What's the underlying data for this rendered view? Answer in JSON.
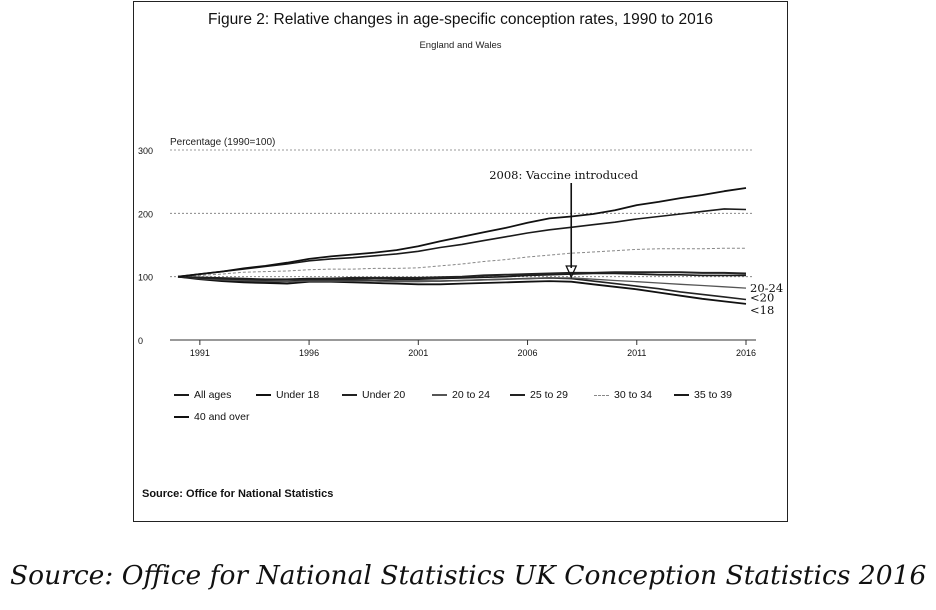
{
  "figure": {
    "title": "Figure 2: Relative changes in age-specific conception rates, 1990 to 2016",
    "subtitle": "England and Wales",
    "source_inner": "Source: Office for National Statistics"
  },
  "outer_caption": "Source: Office for National Statistics UK Conception Statistics 2016",
  "chart_data": {
    "type": "line",
    "title": "Figure 2: Relative changes in age-specific conception rates, 1990 to 2016",
    "subtitle": "England and Wales",
    "ylabel": "Percentage (1990=100)",
    "xlabel": "",
    "x": [
      1990,
      1991,
      1992,
      1993,
      1994,
      1995,
      1996,
      1997,
      1998,
      1999,
      2000,
      2001,
      2002,
      2003,
      2004,
      2005,
      2006,
      2007,
      2008,
      2009,
      2010,
      2011,
      2012,
      2013,
      2014,
      2015,
      2016
    ],
    "xticks": [
      1991,
      1996,
      2001,
      2006,
      2011,
      2016
    ],
    "xtick_labels": [
      "1991",
      "1996",
      "2001",
      "2006",
      "2011",
      "2016"
    ],
    "ylim": [
      0,
      300
    ],
    "yticks": [
      0,
      100,
      200,
      300
    ],
    "ytick_labels": [
      "0",
      "100",
      "200",
      "300"
    ],
    "grid": "dotted at 100, 200, 300",
    "annotation": {
      "text": "2008: Vaccine introduced",
      "x": 2008
    },
    "end_labels": [
      {
        "text": "20-24",
        "series": "20 to 24"
      },
      {
        "text": "<20",
        "series": "Under 20"
      },
      {
        "text": "<18",
        "series": "Under 18"
      }
    ],
    "series": [
      {
        "name": "All ages",
        "color": "#1a1a1a",
        "dash": "",
        "values": [
          100,
          99,
          98,
          97,
          96,
          96,
          97,
          97,
          97,
          97,
          96,
          96,
          97,
          98,
          99,
          100,
          102,
          103,
          104,
          105,
          105,
          104,
          103,
          103,
          102,
          102,
          102
        ]
      },
      {
        "name": "Under 18",
        "color": "#111111",
        "dash": "",
        "values": [
          100,
          96,
          93,
          91,
          90,
          89,
          92,
          92,
          91,
          90,
          89,
          88,
          88,
          89,
          90,
          91,
          92,
          93,
          92,
          88,
          84,
          80,
          75,
          70,
          65,
          61,
          57
        ]
      },
      {
        "name": "Under 20",
        "color": "#222222",
        "dash": "",
        "values": [
          100,
          97,
          95,
          93,
          92,
          92,
          94,
          95,
          95,
          94,
          93,
          93,
          93,
          94,
          95,
          96,
          97,
          98,
          97,
          93,
          89,
          85,
          81,
          76,
          72,
          68,
          64
        ]
      },
      {
        "name": "20 to 24",
        "color": "#555555",
        "dash": "",
        "values": [
          100,
          97,
          95,
          94,
          93,
          92,
          93,
          93,
          93,
          93,
          92,
          92,
          93,
          94,
          95,
          96,
          97,
          98,
          98,
          96,
          94,
          92,
          90,
          88,
          86,
          84,
          82
        ]
      },
      {
        "name": "25 to 29",
        "color": "#222222",
        "dash": "",
        "values": [
          100,
          98,
          97,
          96,
          95,
          95,
          96,
          97,
          98,
          98,
          98,
          98,
          99,
          100,
          102,
          103,
          104,
          105,
          106,
          106,
          107,
          107,
          107,
          107,
          106,
          106,
          105
        ]
      },
      {
        "name": "30 to 34",
        "color": "#888888",
        "dash": "3,2",
        "values": [
          100,
          102,
          104,
          107,
          108,
          109,
          111,
          112,
          112,
          113,
          113,
          114,
          117,
          120,
          124,
          127,
          131,
          134,
          137,
          139,
          141,
          143,
          144,
          144,
          144,
          145,
          145
        ]
      },
      {
        "name": "35 to 39",
        "color": "#1a1a1a",
        "dash": "",
        "values": [
          100,
          104,
          108,
          112,
          116,
          120,
          125,
          128,
          130,
          133,
          136,
          140,
          146,
          151,
          157,
          163,
          169,
          174,
          178,
          182,
          186,
          191,
          195,
          199,
          203,
          207,
          206
        ]
      },
      {
        "name": "40 and over",
        "color": "#111111",
        "dash": "",
        "values": [
          100,
          104,
          108,
          113,
          117,
          122,
          128,
          132,
          135,
          138,
          142,
          148,
          156,
          163,
          170,
          177,
          185,
          192,
          195,
          199,
          205,
          213,
          218,
          224,
          229,
          235,
          240
        ]
      }
    ]
  }
}
